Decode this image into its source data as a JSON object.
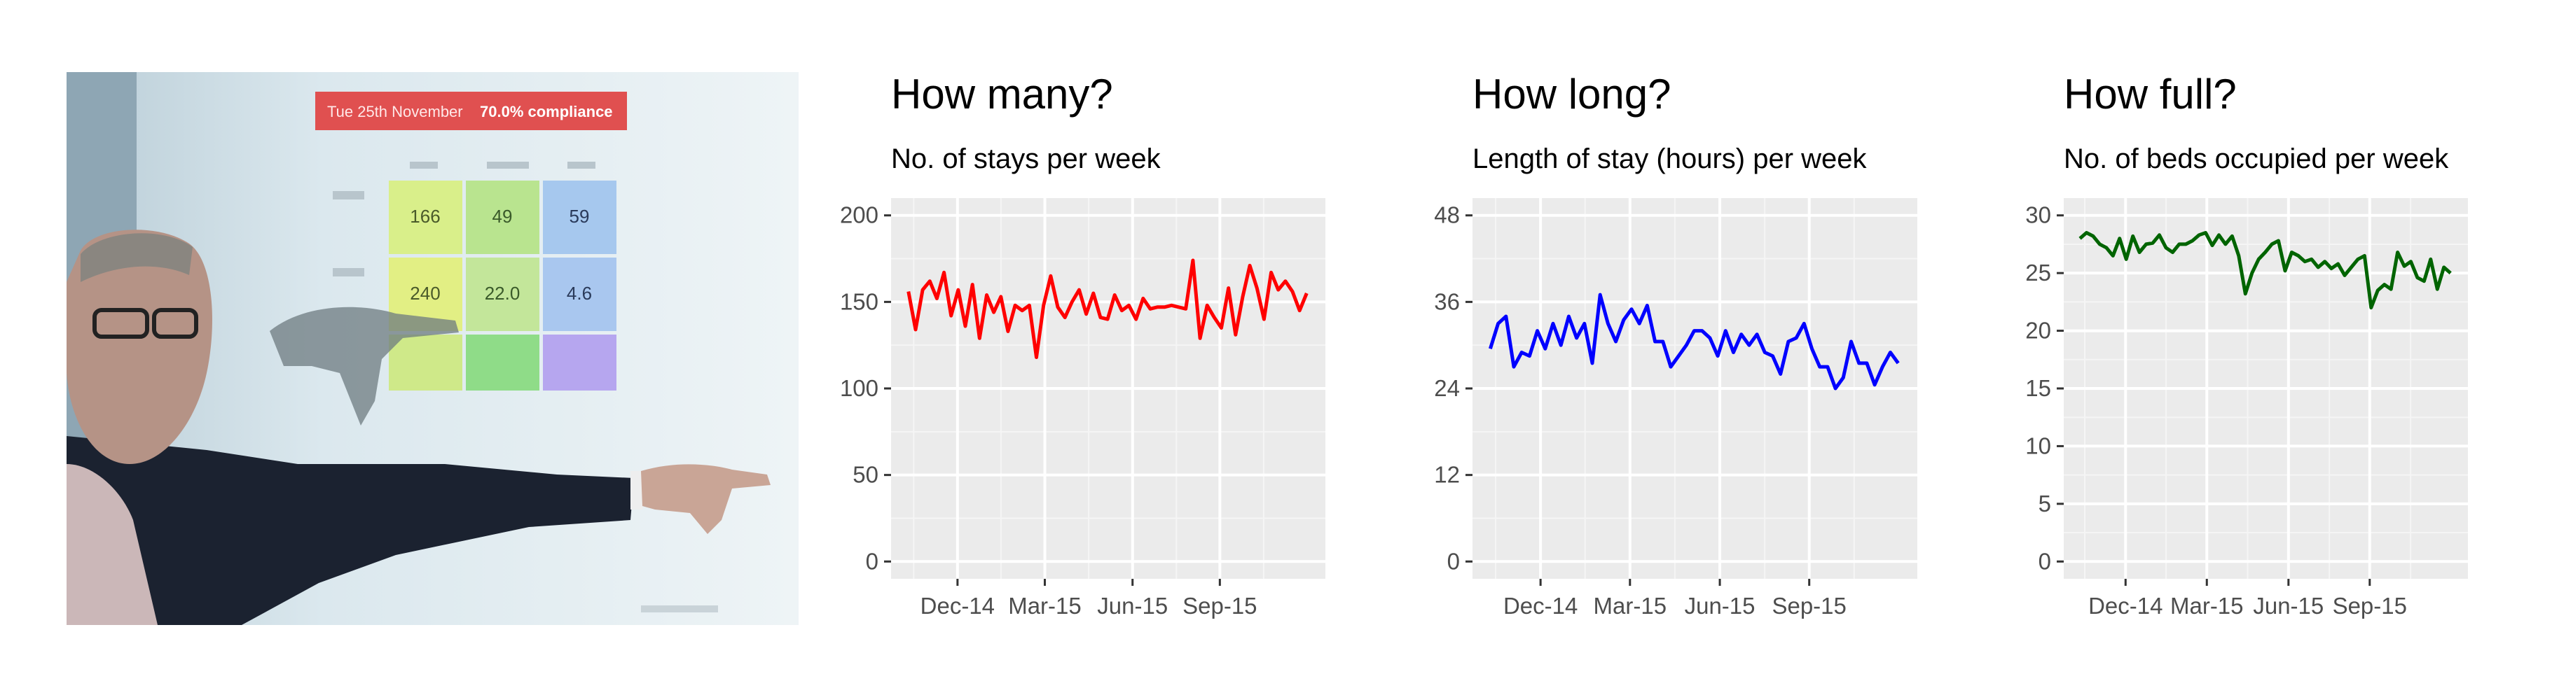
{
  "photo": {
    "alt_subject": "presenter-pointing-at-projected-slide",
    "slide_header_prefix": "Tue 25th November",
    "slide_header_highlight": "70.0% compliance",
    "slide_cells": [
      "166",
      "49",
      "59",
      "240",
      "22.0",
      "4.6",
      "",
      "",
      ""
    ],
    "colors": {
      "header": "#e05050",
      "green": "#b9e48f",
      "yellow": "#d9ef8a",
      "blue": "#a6c8ee",
      "purple": "#b6a6ef"
    }
  },
  "chart_data": [
    {
      "type": "line",
      "title": "How many?",
      "subtitle": "No. of stays per week",
      "color": "#ff0000",
      "xlabels": [
        "Dec-14",
        "Mar-15",
        "Jun-15",
        "Sep-15"
      ],
      "ylim": [
        0,
        200
      ],
      "yticks": [
        0,
        50,
        100,
        150,
        200
      ],
      "grid": true,
      "values": [
        156,
        134,
        157,
        162,
        152,
        167,
        142,
        157,
        136,
        160,
        129,
        154,
        144,
        153,
        133,
        148,
        145,
        148,
        118,
        148,
        165,
        147,
        141,
        150,
        157,
        143,
        155,
        141,
        140,
        154,
        145,
        148,
        140,
        152,
        146,
        147,
        147,
        148,
        147,
        146,
        174,
        129,
        148,
        141,
        135,
        158,
        131,
        153,
        171,
        158,
        140,
        167,
        157,
        162,
        156,
        145,
        155
      ]
    },
    {
      "type": "line",
      "title": "How long?",
      "subtitle": "Length of stay (hours) per week",
      "color": "#0000ff",
      "xlabels": [
        "Dec-14",
        "Mar-15",
        "Jun-15",
        "Sep-15"
      ],
      "ylim": [
        0,
        48
      ],
      "yticks": [
        0,
        12,
        24,
        36,
        48
      ],
      "grid": true,
      "values": [
        29.5,
        33,
        34,
        27,
        29,
        28.5,
        32,
        29.5,
        33,
        30,
        34,
        31,
        33,
        27.5,
        37,
        33,
        30.5,
        33.5,
        35,
        33,
        35.5,
        30.5,
        30.5,
        27,
        28.5,
        30,
        32,
        32,
        31,
        28.5,
        32,
        29,
        31.5,
        30,
        31.5,
        29,
        28.5,
        26,
        30.5,
        31,
        33,
        29.5,
        27,
        27,
        24,
        25.5,
        30.5,
        27.5,
        27.5,
        24.5,
        27,
        29,
        27.5
      ]
    },
    {
      "type": "line",
      "title": "How full?",
      "subtitle": "No. of beds occupied per week",
      "color": "#006400",
      "xlabels": [
        "Dec-14",
        "Mar-15",
        "Jun-15",
        "Sep-15"
      ],
      "ylim": [
        0,
        30
      ],
      "yticks": [
        0,
        5,
        10,
        15,
        20,
        25,
        30
      ],
      "grid": true,
      "values": [
        28,
        28.5,
        28.2,
        27.5,
        27.2,
        26.5,
        28,
        26.2,
        28.2,
        26.8,
        27.5,
        27.6,
        28.3,
        27.2,
        26.8,
        27.5,
        27.5,
        27.8,
        28.3,
        28.5,
        27.4,
        28.3,
        27.5,
        28.2,
        26.5,
        23.2,
        25,
        26.2,
        26.8,
        27.5,
        27.8,
        25.2,
        26.8,
        26.5,
        26,
        26.2,
        25.5,
        26,
        25.4,
        25.8,
        24.8,
        25.5,
        26.2,
        26.5,
        22,
        23.5,
        24,
        23.6,
        26.8,
        25.6,
        26,
        24.6,
        24.3,
        26.2,
        23.6,
        25.5,
        25
      ]
    }
  ]
}
